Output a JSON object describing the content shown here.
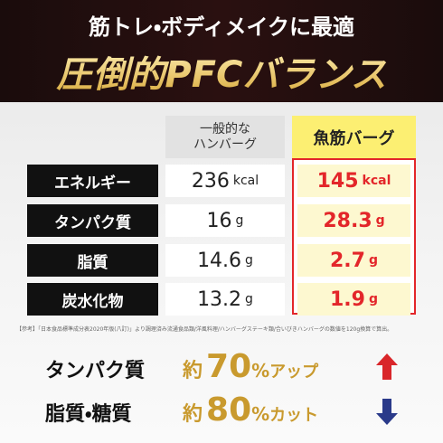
{
  "header": {
    "line1": "筋トレ・ボディメイクに最適",
    "line2": "圧倒的PFCバランス"
  },
  "table": {
    "columns": [
      {
        "lines": [
          "一般的な",
          "ハンバーグ"
        ]
      },
      {
        "lines": [
          "魚筋バーグ"
        ]
      }
    ],
    "rows": [
      {
        "label": "エネルギー",
        "normal": {
          "value": "236",
          "unit": "kcal"
        },
        "fish": {
          "value": "145",
          "unit": "kcal"
        }
      },
      {
        "label": "タンパク質",
        "normal": {
          "value": "16",
          "unit": "g"
        },
        "fish": {
          "value": "28.3",
          "unit": "g"
        }
      },
      {
        "label": "脂質",
        "normal": {
          "value": "14.6",
          "unit": "g"
        },
        "fish": {
          "value": "2.7",
          "unit": "g"
        }
      },
      {
        "label": "炭水化物",
        "normal": {
          "value": "13.2",
          "unit": "g"
        },
        "fish": {
          "value": "1.9",
          "unit": "g"
        }
      }
    ]
  },
  "note": "【参考】「日本食品標準成分表2020年版(八訂)」より調理済み流通食品類/洋風料理/ハンバーグステーキ類/合いびきハンバーグの数値を120g換算で算出。",
  "summary": [
    {
      "label": "タンパク質",
      "prefix": "約",
      "value": "70",
      "unit": "%",
      "suffix": "アップ"
    },
    {
      "label": "脂質・糖質",
      "prefix": "約",
      "value": "80",
      "unit": "%",
      "suffix": "カット"
    }
  ]
}
